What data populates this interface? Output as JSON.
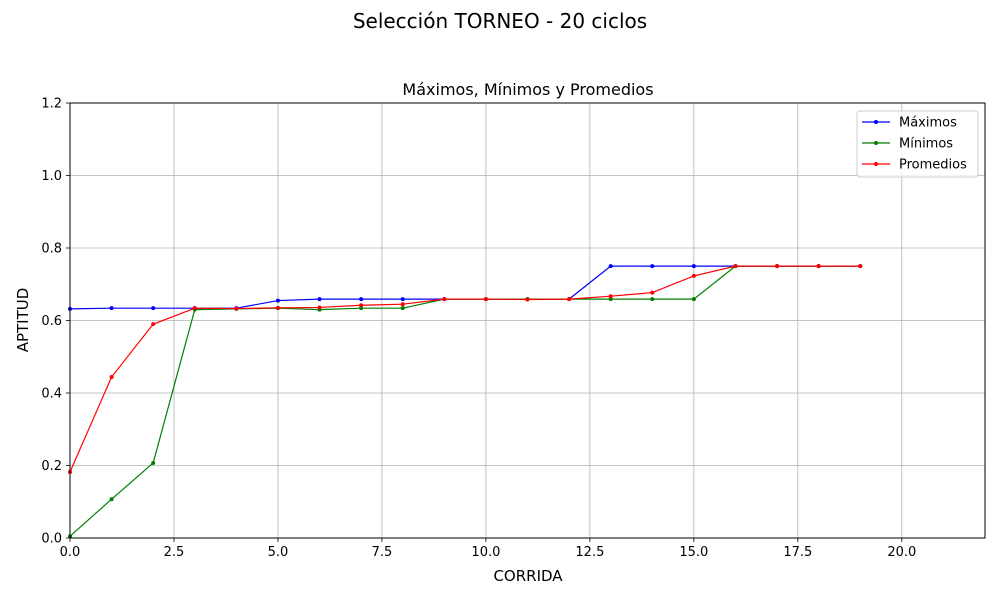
{
  "figure": {
    "suptitle": "Selección TORNEO - 20 ciclos"
  },
  "chart_data": {
    "type": "line",
    "title": "Máximos, Mínimos y Promedios",
    "xlabel": "CORRIDA",
    "ylabel": "APTITUD",
    "xlim": [
      0,
      22
    ],
    "ylim": [
      0,
      1.2
    ],
    "xticks": [
      "0.0",
      "2.5",
      "5.0",
      "7.5",
      "10.0",
      "12.5",
      "15.0",
      "17.5",
      "20.0"
    ],
    "xtick_values": [
      0,
      2.5,
      5,
      7.5,
      10,
      12.5,
      15,
      17.5,
      20
    ],
    "yticks": [
      "0.0",
      "0.2",
      "0.4",
      "0.6",
      "0.8",
      "1.0",
      "1.2"
    ],
    "ytick_values": [
      0,
      0.2,
      0.4,
      0.6,
      0.8,
      1.0,
      1.2
    ],
    "grid": true,
    "legend_position": "top-right",
    "x": [
      0,
      1,
      2,
      3,
      4,
      5,
      6,
      7,
      8,
      9,
      10,
      11,
      12,
      13,
      14,
      15,
      16,
      17,
      18,
      19
    ],
    "series": [
      {
        "name": "Máximos",
        "color": "#0000ff",
        "values": [
          0.632,
          0.634,
          0.634,
          0.634,
          0.634,
          0.655,
          0.659,
          0.659,
          0.659,
          0.659,
          0.659,
          0.659,
          0.659,
          0.75,
          0.75,
          0.75,
          0.75,
          0.75,
          0.75,
          0.75
        ]
      },
      {
        "name": "Mínimos",
        "color": "#008000",
        "values": [
          0.005,
          0.107,
          0.207,
          0.63,
          0.632,
          0.634,
          0.63,
          0.634,
          0.634,
          0.659,
          0.659,
          0.659,
          0.659,
          0.659,
          0.659,
          0.659,
          0.75,
          0.75,
          0.75,
          0.75
        ]
      },
      {
        "name": "Promedios",
        "color": "#ff0000",
        "values": [
          0.182,
          0.444,
          0.59,
          0.634,
          0.633,
          0.635,
          0.636,
          0.642,
          0.645,
          0.659,
          0.659,
          0.658,
          0.659,
          0.667,
          0.677,
          0.723,
          0.75,
          0.75,
          0.75,
          0.75
        ]
      }
    ]
  }
}
